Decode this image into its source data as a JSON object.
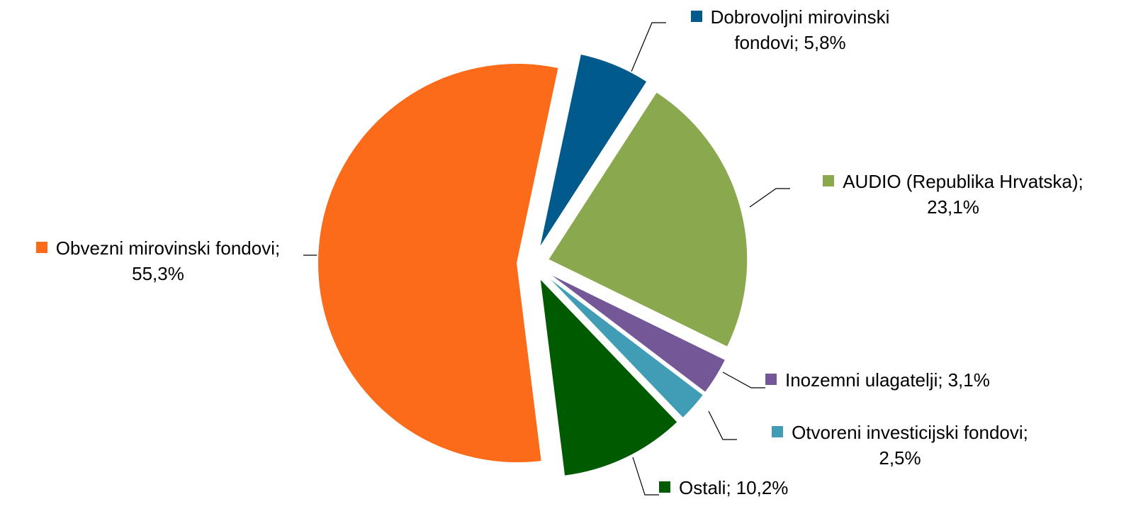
{
  "chart_data": {
    "type": "pie",
    "categories": [
      "Dobrovoljni mirovinski fondovi;",
      "AUDIO (Republika Hrvatska);",
      "Inozemni ulagatelji;",
      "Otvoreni investicijski fondovi;",
      "Ostali;",
      "Obvezni mirovinski fondovi;"
    ],
    "values": [
      5.8,
      23.1,
      3.1,
      2.5,
      10.2,
      55.3
    ],
    "value_labels": [
      "5,8%",
      "23,1%",
      "3,1%",
      "2,5%",
      "10,2%",
      "55,3%"
    ],
    "colors": [
      "#005a8c",
      "#8aa84e",
      "#745796",
      "#419cb5",
      "#005a00",
      "#fb6b1a"
    ]
  }
}
